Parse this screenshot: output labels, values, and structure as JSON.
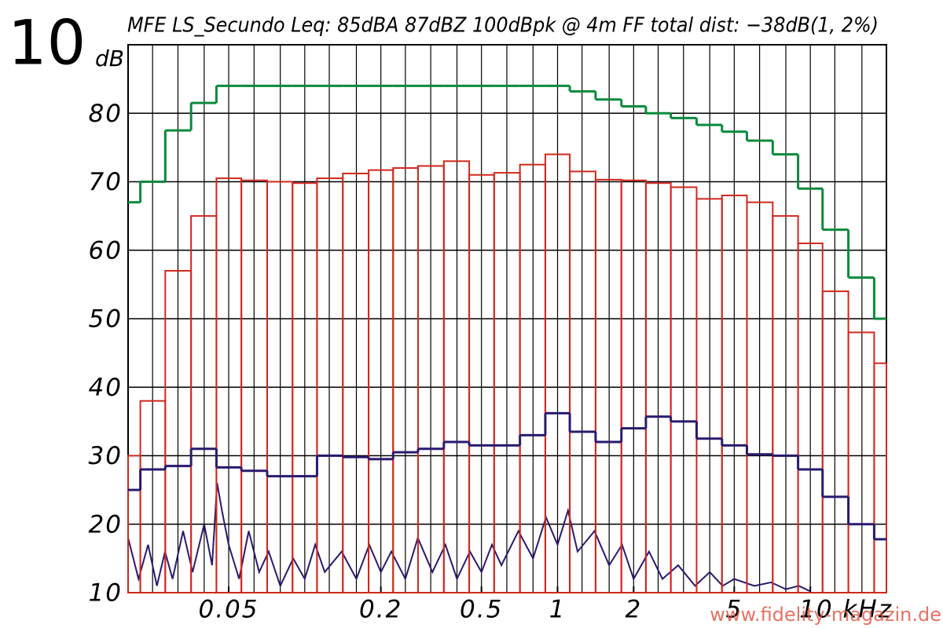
{
  "page_number": "10",
  "watermark": "www.fidelity-magazin.de",
  "chart_data": {
    "type": "step",
    "title": "MFE LS_Secundo Leq: 85dBA 87dBZ 100dBpk @ 4m FF total dist: −38dB(1, 2%)",
    "y_label": "dB",
    "x_scale": "log",
    "xlim": [
      0.02,
      20
    ],
    "xticks": [
      0.05,
      0.2,
      0.5,
      1,
      2,
      5,
      {
        "value": 10,
        "label": "10 kHz"
      }
    ],
    "ylim": [
      10,
      90
    ],
    "yticks": [
      10,
      20,
      30,
      40,
      50,
      60,
      70,
      80
    ],
    "grid": true,
    "x": [
      0.02,
      0.025,
      0.0315,
      0.04,
      0.05,
      0.063,
      0.08,
      0.1,
      0.125,
      0.16,
      0.2,
      0.25,
      0.315,
      0.4,
      0.5,
      0.63,
      0.8,
      1,
      1.25,
      1.6,
      2,
      2.5,
      3.15,
      4,
      5,
      6.3,
      8,
      10,
      12.5,
      16,
      20
    ],
    "series": [
      {
        "style": "step",
        "color": "#0a8a3c",
        "values": [
          67,
          70,
          77.5,
          81.5,
          84,
          84,
          84,
          84,
          84,
          84,
          84,
          84,
          84,
          84,
          84,
          84,
          84,
          84,
          83.2,
          82,
          81,
          80,
          79.3,
          78.3,
          77.3,
          76,
          74,
          69,
          63,
          56,
          50
        ]
      },
      {
        "style": "bars",
        "color": "#d0281e",
        "values": [
          30,
          38,
          57,
          65,
          70.5,
          70.2,
          70,
          69.8,
          70.5,
          71.2,
          71.7,
          72,
          72.3,
          73,
          71,
          71.3,
          72.5,
          74,
          71.5,
          70.3,
          70.2,
          69.8,
          69.2,
          67.5,
          68,
          67,
          65,
          61,
          54,
          48,
          43.5
        ]
      },
      {
        "style": "step",
        "color": "#2a1a6e",
        "values": [
          25,
          28,
          28.5,
          31,
          28.3,
          27.8,
          27,
          27,
          30,
          29.8,
          29.5,
          30.5,
          31,
          32,
          31.5,
          31.5,
          33,
          36.2,
          33.5,
          32,
          34,
          35.7,
          35,
          32.5,
          31.5,
          30.2,
          30,
          28,
          24,
          20,
          17.8
        ]
      },
      {
        "style": "line",
        "color": "#2a1a6e",
        "x": [
          0.02,
          0.022,
          0.024,
          0.026,
          0.028,
          0.03,
          0.033,
          0.036,
          0.04,
          0.043,
          0.045,
          0.047,
          0.05,
          0.055,
          0.06,
          0.066,
          0.072,
          0.08,
          0.09,
          0.1,
          0.11,
          0.12,
          0.14,
          0.16,
          0.18,
          0.2,
          0.22,
          0.25,
          0.28,
          0.32,
          0.36,
          0.4,
          0.45,
          0.5,
          0.55,
          0.6,
          0.7,
          0.8,
          0.9,
          1,
          1.1,
          1.2,
          1.4,
          1.6,
          1.8,
          2,
          2.3,
          2.6,
          3,
          3.5,
          4,
          4.5,
          5,
          6,
          7,
          8,
          9,
          10
        ],
        "values": [
          18,
          12,
          17,
          11,
          16,
          12,
          19,
          13,
          20,
          14,
          26,
          22,
          17,
          12,
          19,
          13,
          16,
          11,
          15,
          12,
          17,
          13,
          16,
          12,
          17,
          13,
          16,
          12,
          18,
          13,
          17,
          12,
          16,
          13,
          17,
          14,
          19,
          15,
          21,
          17,
          22,
          16,
          19,
          14,
          17,
          12,
          16,
          12,
          14,
          11,
          13,
          11,
          12,
          11,
          11.5,
          10.5,
          11,
          10.2
        ]
      }
    ]
  }
}
